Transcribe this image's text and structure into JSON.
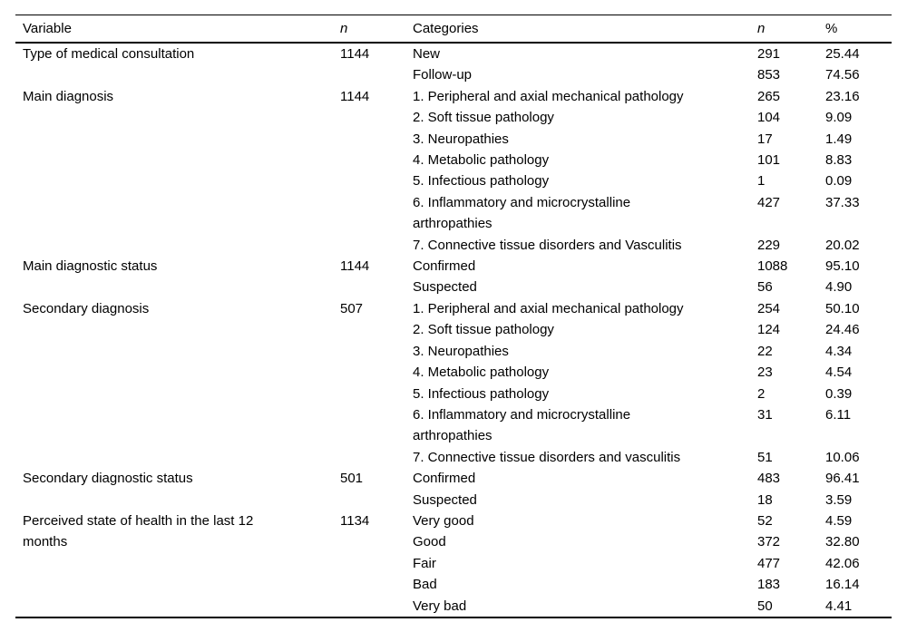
{
  "table": {
    "columns": [
      "Variable",
      "n",
      "Categories",
      "n",
      "%"
    ],
    "groups": [
      {
        "variable": "Type of medical consultation",
        "n": "1144",
        "rows": [
          {
            "category": "New",
            "n": "291",
            "pct": "25.44"
          },
          {
            "category": "Follow-up",
            "n": "853",
            "pct": "74.56"
          }
        ]
      },
      {
        "variable": "Main diagnosis",
        "n": "1144",
        "rows": [
          {
            "category": "1. Peripheral and axial mechanical pathology",
            "n": "265",
            "pct": "23.16"
          },
          {
            "category": "2. Soft tissue pathology",
            "n": "104",
            "pct": "9.09"
          },
          {
            "category": "3. Neuropathies",
            "n": "17",
            "pct": "1.49"
          },
          {
            "category": "4. Metabolic pathology",
            "n": "101",
            "pct": "8.83"
          },
          {
            "category": "5. Infectious pathology",
            "n": "1",
            "pct": "0.09"
          },
          {
            "category": "6. Inflammatory and microcrystalline arthropathies",
            "n": "427",
            "pct": "37.33"
          },
          {
            "category": "7. Connective tissue disorders and Vasculitis",
            "n": "229",
            "pct": "20.02"
          }
        ]
      },
      {
        "variable": "Main diagnostic status",
        "n": "1144",
        "rows": [
          {
            "category": "Confirmed",
            "n": "1088",
            "pct": "95.10"
          },
          {
            "category": "Suspected",
            "n": "56",
            "pct": "4.90"
          }
        ]
      },
      {
        "variable": "Secondary diagnosis",
        "n": "507",
        "rows": [
          {
            "category": "1. Peripheral and axial mechanical pathology",
            "n": "254",
            "pct": "50.10"
          },
          {
            "category": "2. Soft tissue pathology",
            "n": "124",
            "pct": "24.46"
          },
          {
            "category": "3. Neuropathies",
            "n": "22",
            "pct": "4.34"
          },
          {
            "category": "4. Metabolic pathology",
            "n": "23",
            "pct": "4.54"
          },
          {
            "category": "5. Infectious pathology",
            "n": "2",
            "pct": "0.39"
          },
          {
            "category": "6. Inflammatory and microcrystalline arthropathies",
            "n": "31",
            "pct": "6.11"
          },
          {
            "category": "7. Connective tissue disorders and vasculitis",
            "n": "51",
            "pct": "10.06"
          }
        ]
      },
      {
        "variable": "Secondary diagnostic status",
        "n": "501",
        "rows": [
          {
            "category": "Confirmed",
            "n": "483",
            "pct": "96.41"
          },
          {
            "category": "Suspected",
            "n": "18",
            "pct": "3.59"
          }
        ]
      },
      {
        "variable": "Perceived state of health in the last 12 months",
        "n": "1134",
        "rows": [
          {
            "category": "Very good",
            "n": "52",
            "pct": "4.59"
          },
          {
            "category": "Good",
            "n": "372",
            "pct": "32.80"
          },
          {
            "category": "Fair",
            "n": "477",
            "pct": "42.06"
          },
          {
            "category": "Bad",
            "n": "183",
            "pct": "16.14"
          },
          {
            "category": "Very bad",
            "n": "50",
            "pct": "4.41"
          }
        ]
      }
    ]
  }
}
